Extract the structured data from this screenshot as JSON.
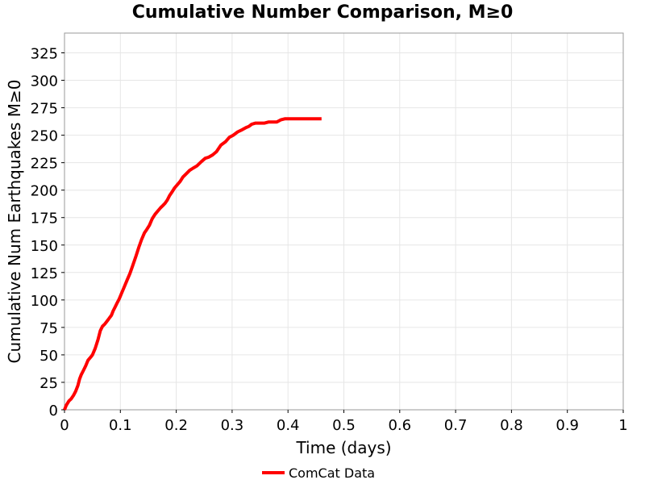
{
  "chart_data": {
    "type": "line",
    "title": "Cumulative Number Comparison, M≥0",
    "xlabel": "Time (days)",
    "ylabel": "Cumulative Num Earthquakes M≥0",
    "xlim": [
      0,
      1
    ],
    "ylim": [
      0,
      343
    ],
    "x_ticks": [
      0,
      0.1,
      0.2,
      0.3,
      0.4,
      0.5,
      0.6,
      0.7,
      0.8,
      0.9,
      1
    ],
    "x_tick_labels": [
      "0",
      "0.1",
      "0.2",
      "0.3",
      "0.4",
      "0.5",
      "0.6",
      "0.7",
      "0.8",
      "0.9",
      "1"
    ],
    "y_ticks": [
      0,
      25,
      50,
      75,
      100,
      125,
      150,
      175,
      200,
      225,
      250,
      275,
      300,
      325
    ],
    "y_tick_labels": [
      "0",
      "25",
      "50",
      "75",
      "100",
      "125",
      "150",
      "175",
      "200",
      "225",
      "250",
      "275",
      "300",
      "325"
    ],
    "grid": true,
    "legend_position": "bottom",
    "series": [
      {
        "name": "ComCat Data",
        "color": "#ff0000",
        "x": [
          0.0,
          0.003,
          0.008,
          0.012,
          0.016,
          0.02,
          0.024,
          0.027,
          0.03,
          0.034,
          0.038,
          0.042,
          0.047,
          0.05,
          0.055,
          0.06,
          0.064,
          0.068,
          0.072,
          0.075,
          0.078,
          0.081,
          0.084,
          0.087,
          0.09,
          0.094,
          0.098,
          0.102,
          0.107,
          0.112,
          0.117,
          0.122,
          0.128,
          0.133,
          0.138,
          0.143,
          0.147,
          0.152,
          0.157,
          0.162,
          0.167,
          0.172,
          0.176,
          0.18,
          0.184,
          0.188,
          0.192,
          0.197,
          0.202,
          0.207,
          0.212,
          0.218,
          0.224,
          0.23,
          0.237,
          0.245,
          0.252,
          0.258,
          0.265,
          0.272,
          0.28,
          0.288,
          0.295,
          0.302,
          0.31,
          0.318,
          0.325,
          0.33,
          0.335,
          0.342,
          0.35,
          0.358,
          0.365,
          0.373,
          0.38,
          0.387,
          0.395,
          0.4,
          0.407,
          0.415,
          0.425,
          0.432,
          0.44,
          0.448,
          0.46
        ],
        "y": [
          0,
          4,
          8,
          10,
          13,
          17,
          22,
          28,
          32,
          36,
          40,
          45,
          48,
          50,
          56,
          64,
          72,
          76,
          78,
          80,
          82,
          84,
          86,
          90,
          93,
          97,
          101,
          106,
          112,
          118,
          124,
          131,
          140,
          148,
          155,
          161,
          164,
          168,
          174,
          178,
          181,
          184,
          186,
          188,
          191,
          195,
          198,
          202,
          205,
          208,
          212,
          215,
          218,
          220,
          222,
          226,
          229,
          230,
          232,
          235,
          241,
          244,
          248,
          250,
          253,
          255,
          257,
          258,
          260,
          261,
          261,
          261,
          262,
          262,
          262,
          264,
          265,
          265,
          265,
          265,
          265,
          265,
          265,
          265,
          265
        ]
      }
    ]
  }
}
